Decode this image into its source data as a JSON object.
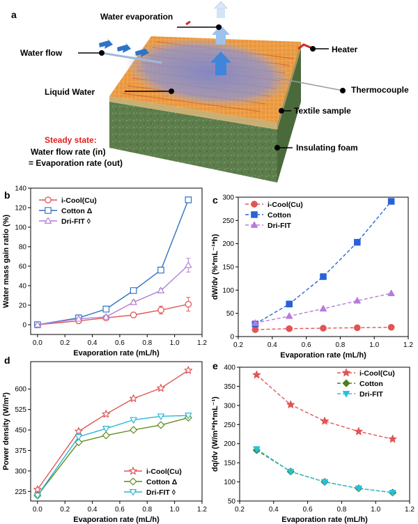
{
  "figure": {
    "panel_a": {
      "label": "a",
      "water_evaporation": "Water evaporation",
      "water_flow": "Water flow",
      "heater": "Heater",
      "thermocouple": "Thermocouple",
      "liquid_water": "Liquid Water",
      "textile_sample": "Textile sample",
      "insulating_foam": "Insulating foam",
      "steady_state": "Steady state:",
      "flow_rate_line": "Water flow rate (in)",
      "evap_rate_line": "= Evaporation rate (out)"
    }
  },
  "chart_data": [
    {
      "panel": "b",
      "type": "line",
      "xlabel": "Evaporation rate (mL/h)",
      "ylabel": "Water mass gain ratio (%)",
      "xlim": [
        -0.05,
        1.2
      ],
      "ylim": [
        -10,
        140
      ],
      "xticks": [
        "0.0",
        "0.2",
        "0.4",
        "0.6",
        "0.8",
        "1.0",
        "1.2"
      ],
      "yticks": [
        "0",
        "20",
        "40",
        "60",
        "80",
        "100",
        "120",
        "140"
      ],
      "legend_position": "top-left",
      "x": [
        0.0,
        0.3,
        0.5,
        0.7,
        0.9,
        1.1
      ],
      "series": [
        {
          "name": "i-Cool(Cu)",
          "color": "#e05555",
          "marker": "circle-open",
          "values": [
            0,
            4,
            7,
            10,
            15,
            21
          ],
          "errors": [
            1,
            1,
            1,
            2,
            4,
            7
          ]
        },
        {
          "name": "Cotton Δ",
          "color": "#2f72c0",
          "marker": "square-open",
          "values": [
            0,
            7,
            16,
            35,
            56,
            128
          ],
          "errors": [
            1,
            1,
            1,
            2,
            2,
            2
          ]
        },
        {
          "name": "Dri-FIT ◊",
          "color": "#b07fd6",
          "marker": "triangle-open",
          "values": [
            0,
            6,
            8,
            23,
            35,
            61
          ],
          "errors": [
            1,
            1,
            1,
            2,
            2,
            7
          ]
        }
      ]
    },
    {
      "panel": "c",
      "type": "scatter",
      "xlabel": "Evaporation rate (mL/h)",
      "ylabel": "dW/dv (%*mL⁻¹*h)",
      "xlim": [
        0.2,
        1.2
      ],
      "ylim": [
        0,
        300
      ],
      "xticks": [
        "0.2",
        "0.4",
        "0.6",
        "0.8",
        "1.0",
        "1.2"
      ],
      "yticks": [
        "0",
        "50",
        "100",
        "150",
        "200",
        "250",
        "300"
      ],
      "legend_position": "top-left",
      "x": [
        0.3,
        0.5,
        0.7,
        0.9,
        1.1
      ],
      "series": [
        {
          "name": "i-Cool(Cu)",
          "color": "#e05555",
          "marker": "circle",
          "values": [
            15,
            17,
            18,
            19,
            20
          ]
        },
        {
          "name": "Cotton",
          "color": "#2a62d6",
          "marker": "square",
          "values": [
            27,
            70,
            129,
            203,
            291
          ]
        },
        {
          "name": "Dri-FIT",
          "color": "#b67cdc",
          "marker": "triangle",
          "values": [
            29,
            44,
            60,
            77,
            93
          ]
        }
      ]
    },
    {
      "panel": "d",
      "type": "line",
      "xlabel": "Evaporation rate (mL/h)",
      "ylabel": "Power density (W/m²)",
      "xlim": [
        -0.05,
        1.2
      ],
      "ylim": [
        190,
        700
      ],
      "xticks": [
        "0.0",
        "0.2",
        "0.4",
        "0.6",
        "0.8",
        "1.0",
        "1.2"
      ],
      "yticks": [
        "225",
        "300",
        "375",
        "450",
        "525",
        "600"
      ],
      "legend_position": "bottom-right",
      "x": [
        0.0,
        0.3,
        0.5,
        0.7,
        0.9,
        1.1
      ],
      "series": [
        {
          "name": "i-Cool(Cu)",
          "color": "#e05555",
          "marker": "star-open",
          "values": [
            232,
            445,
            508,
            565,
            603,
            668
          ]
        },
        {
          "name": "Cotton Δ",
          "color": "#5f8a1e",
          "marker": "diamond-open",
          "values": [
            210,
            405,
            430,
            450,
            468,
            495
          ]
        },
        {
          "name": "Dri-FIT ◊",
          "color": "#29b6d4",
          "marker": "triangle-down-open",
          "values": [
            210,
            425,
            455,
            487,
            500,
            503
          ]
        }
      ]
    },
    {
      "panel": "e",
      "type": "scatter",
      "xlabel": "Evaporation rate (mL/h)",
      "ylabel": "dq/dv (W/m²*h*mL⁻¹)",
      "xlim": [
        0.2,
        1.2
      ],
      "ylim": [
        50,
        400
      ],
      "xticks": [
        "0.2",
        "0.4",
        "0.6",
        "0.8",
        "1.0",
        "1.2"
      ],
      "yticks": [
        "50",
        "100",
        "150",
        "200",
        "250",
        "300",
        "350",
        "400"
      ],
      "legend_position": "top-right",
      "x": [
        0.3,
        0.5,
        0.7,
        0.9,
        1.1
      ],
      "series": [
        {
          "name": "i-Cool(Cu)",
          "color": "#e05555",
          "marker": "star",
          "values": [
            380,
            302,
            259,
            232,
            212
          ]
        },
        {
          "name": "Cotton",
          "color": "#4e7d1f",
          "marker": "diamond",
          "values": [
            183,
            127,
            100,
            83,
            72
          ]
        },
        {
          "name": "Dri-FIT",
          "color": "#27c0dc",
          "marker": "triangle-down",
          "values": [
            186,
            127,
            100,
            83,
            72
          ]
        }
      ]
    }
  ]
}
